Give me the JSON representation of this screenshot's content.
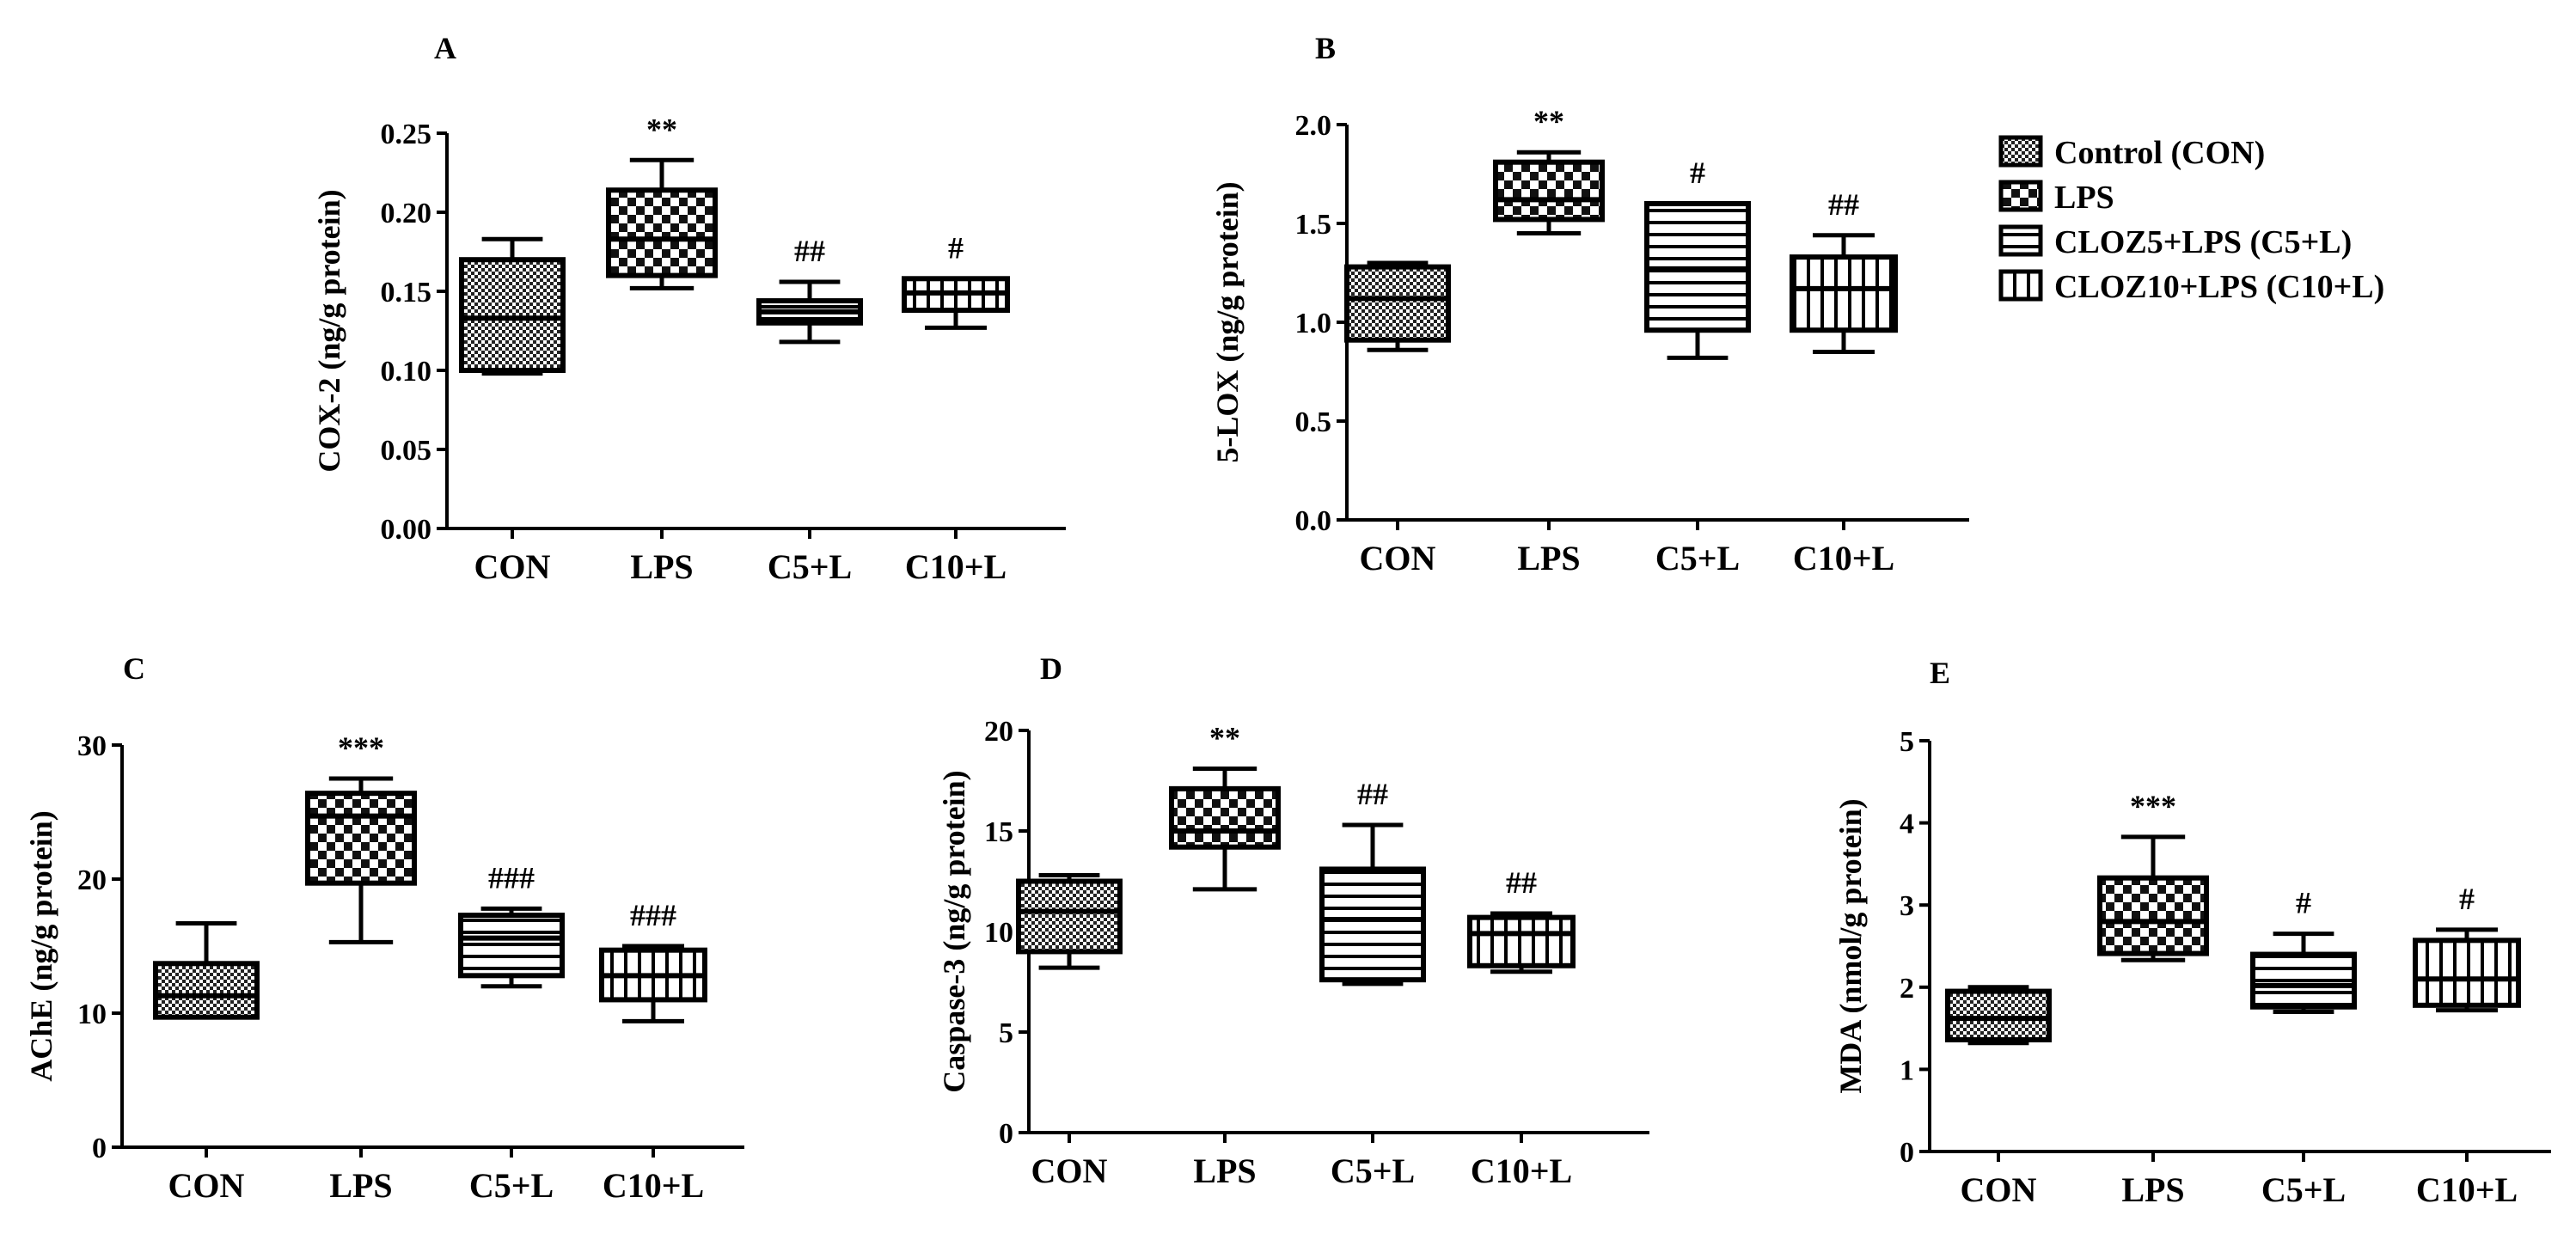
{
  "legend": {
    "entries": [
      {
        "label": "Control (CON)",
        "pattern": "checker"
      },
      {
        "label": "LPS",
        "pattern": "bigchecker"
      },
      {
        "label": "CLOZ5+LPS (C5+L)",
        "pattern": "hlines"
      },
      {
        "label": "CLOZ10+LPS (C10+L)",
        "pattern": "vlines"
      }
    ]
  },
  "chart_data": [
    {
      "panel": "A",
      "type": "box",
      "ylabel": "COX-2 (ng/g protein)",
      "ylim": [
        0,
        0.25
      ],
      "yticks": [
        "0.00",
        "0.05",
        "0.10",
        "0.15",
        "0.20",
        "0.25"
      ],
      "categories": [
        "CON",
        "LPS",
        "C5+L",
        "C10+L"
      ],
      "boxes": [
        {
          "min": 0.098,
          "q1": 0.1,
          "median": 0.133,
          "q3": 0.17,
          "max": 0.183,
          "pattern": "checker",
          "sig": ""
        },
        {
          "min": 0.152,
          "q1": 0.16,
          "median": 0.183,
          "q3": 0.214,
          "max": 0.233,
          "pattern": "bigchecker",
          "sig": "**"
        },
        {
          "min": 0.118,
          "q1": 0.13,
          "median": 0.137,
          "q3": 0.144,
          "max": 0.156,
          "pattern": "hlines",
          "sig": "##"
        },
        {
          "min": 0.127,
          "q1": 0.138,
          "median": 0.149,
          "q3": 0.158,
          "max": 0.158,
          "pattern": "vlines",
          "sig": "#"
        }
      ]
    },
    {
      "panel": "B",
      "type": "box",
      "ylabel": "5-LOX (ng/g protein)",
      "ylim": [
        0,
        2.0
      ],
      "yticks": [
        "0.0",
        "0.5",
        "1.0",
        "1.5",
        "2.0"
      ],
      "categories": [
        "CON",
        "LPS",
        "C5+L",
        "C10+L"
      ],
      "boxes": [
        {
          "min": 0.86,
          "q1": 0.91,
          "median": 1.12,
          "q3": 1.28,
          "max": 1.3,
          "pattern": "checker",
          "sig": ""
        },
        {
          "min": 1.45,
          "q1": 1.52,
          "median": 1.62,
          "q3": 1.81,
          "max": 1.86,
          "pattern": "bigchecker",
          "sig": "**"
        },
        {
          "min": 0.82,
          "q1": 0.96,
          "median": 1.27,
          "q3": 1.6,
          "max": 1.6,
          "pattern": "hlines",
          "sig": "#"
        },
        {
          "min": 0.85,
          "q1": 0.96,
          "median": 1.17,
          "q3": 1.33,
          "max": 1.44,
          "pattern": "vlines",
          "sig": "##"
        }
      ]
    },
    {
      "panel": "C",
      "type": "box",
      "ylabel": "AChE  (ng/g protein)",
      "ylim": [
        0,
        30
      ],
      "yticks": [
        "0",
        "10",
        "20",
        "30"
      ],
      "categories": [
        "CON",
        "LPS",
        "C5+L",
        "C10+L"
      ],
      "boxes": [
        {
          "min": 9.7,
          "q1": 9.7,
          "median": 11.3,
          "q3": 13.7,
          "max": 16.7,
          "pattern": "checker",
          "sig": ""
        },
        {
          "min": 15.3,
          "q1": 19.7,
          "median": 24.7,
          "q3": 26.4,
          "max": 27.5,
          "pattern": "bigchecker",
          "sig": "***"
        },
        {
          "min": 12.0,
          "q1": 12.8,
          "median": 15.6,
          "q3": 17.3,
          "max": 17.8,
          "pattern": "hlines",
          "sig": "###"
        },
        {
          "min": 9.4,
          "q1": 11.0,
          "median": 12.8,
          "q3": 14.7,
          "max": 15.0,
          "pattern": "vlines",
          "sig": "###"
        }
      ]
    },
    {
      "panel": "D",
      "type": "box",
      "ylabel": "Caspase-3 (ng/g protein)",
      "ylim": [
        0,
        20
      ],
      "yticks": [
        "0",
        "5",
        "10",
        "15",
        "20"
      ],
      "categories": [
        "CON",
        "LPS",
        "C5+L",
        "C10+L"
      ],
      "boxes": [
        {
          "min": 8.2,
          "q1": 9.0,
          "median": 11.0,
          "q3": 12.5,
          "max": 12.8,
          "pattern": "checker",
          "sig": ""
        },
        {
          "min": 12.1,
          "q1": 14.2,
          "median": 15.0,
          "q3": 17.1,
          "max": 18.1,
          "pattern": "bigchecker",
          "sig": "**"
        },
        {
          "min": 7.4,
          "q1": 7.6,
          "median": 10.6,
          "q3": 13.1,
          "max": 15.3,
          "pattern": "hlines",
          "sig": "##"
        },
        {
          "min": 8.0,
          "q1": 8.3,
          "median": 9.9,
          "q3": 10.7,
          "max": 10.9,
          "pattern": "vlines",
          "sig": "##"
        }
      ]
    },
    {
      "panel": "E",
      "type": "box",
      "ylabel": "MDA (nmol/g protein)",
      "ylim": [
        0,
        5
      ],
      "yticks": [
        "0",
        "1",
        "2",
        "3",
        "4",
        "5"
      ],
      "categories": [
        "CON",
        "LPS",
        "C5+L",
        "C10+L"
      ],
      "boxes": [
        {
          "min": 1.32,
          "q1": 1.36,
          "median": 1.62,
          "q3": 1.95,
          "max": 2.0,
          "pattern": "checker",
          "sig": ""
        },
        {
          "min": 2.33,
          "q1": 2.41,
          "median": 2.8,
          "q3": 3.33,
          "max": 3.83,
          "pattern": "bigchecker",
          "sig": "***"
        },
        {
          "min": 1.7,
          "q1": 1.76,
          "median": 2.02,
          "q3": 2.4,
          "max": 2.65,
          "pattern": "hlines",
          "sig": "#"
        },
        {
          "min": 1.72,
          "q1": 1.78,
          "median": 2.1,
          "q3": 2.57,
          "max": 2.7,
          "pattern": "vlines",
          "sig": "#"
        }
      ]
    }
  ]
}
